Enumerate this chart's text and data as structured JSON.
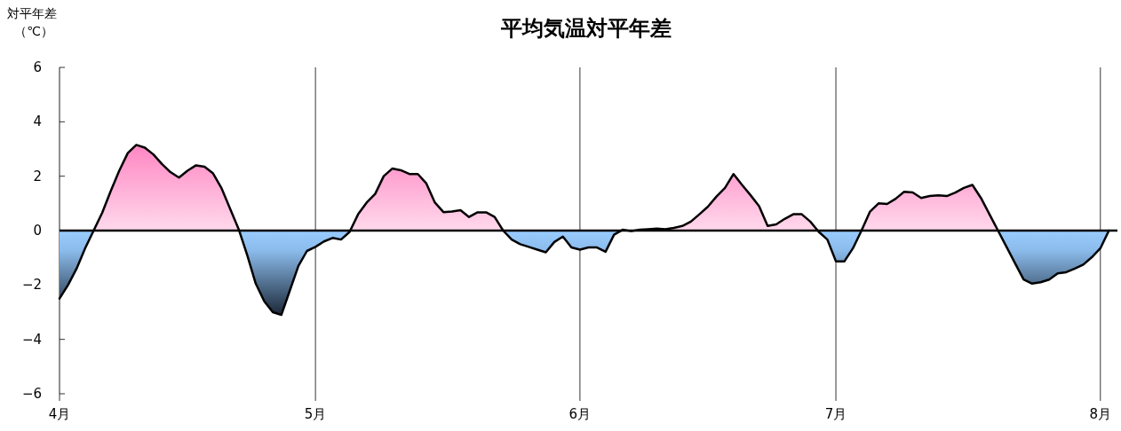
{
  "chart_data": {
    "type": "area",
    "title": "平均気温対平年差",
    "ylabel": "対平年差（℃）",
    "xlim": [
      "--04-01",
      "--08-03"
    ],
    "xticks": [
      {
        "value": "--04-01",
        "label": "4月"
      },
      {
        "value": "--05-01",
        "label": "5月"
      },
      {
        "value": "--06-01",
        "label": "6月"
      },
      {
        "value": "--07-01",
        "label": "7月"
      },
      {
        "value": "--08-01",
        "label": "8月"
      }
    ],
    "ylim": [
      -6,
      6
    ],
    "yticks": [
      -6,
      -4,
      -2,
      0,
      2,
      4,
      6
    ],
    "grid": "x",
    "x": [
      "--04-01",
      "--04-02",
      "--04-03",
      "--04-04",
      "--04-05",
      "--04-06",
      "--04-07",
      "--04-08",
      "--04-09",
      "--04-10",
      "--04-11",
      "--04-12",
      "--04-13",
      "--04-14",
      "--04-15",
      "--04-16",
      "--04-17",
      "--04-18",
      "--04-19",
      "--04-20",
      "--04-21",
      "--04-22",
      "--04-23",
      "--04-24",
      "--04-25",
      "--04-26",
      "--04-27",
      "--04-28",
      "--04-29",
      "--04-30",
      "--05-01",
      "--05-02",
      "--05-03",
      "--05-04",
      "--05-05",
      "--05-06",
      "--05-07",
      "--05-08",
      "--05-09",
      "--05-10",
      "--05-11",
      "--05-12",
      "--05-13",
      "--05-14",
      "--05-15",
      "--05-16",
      "--05-17",
      "--05-18",
      "--05-19",
      "--05-20",
      "--05-21",
      "--05-22",
      "--05-23",
      "--05-24",
      "--05-25",
      "--05-26",
      "--05-27",
      "--05-28",
      "--05-29",
      "--05-30",
      "--05-31",
      "--06-01",
      "--06-02",
      "--06-03",
      "--06-04",
      "--06-05",
      "--06-06",
      "--06-07",
      "--06-08",
      "--06-09",
      "--06-10",
      "--06-11",
      "--06-12",
      "--06-13",
      "--06-14",
      "--06-15",
      "--06-16",
      "--06-17",
      "--06-18",
      "--06-19",
      "--06-20",
      "--06-21",
      "--06-22",
      "--06-23",
      "--06-24",
      "--06-25",
      "--06-26",
      "--06-27",
      "--06-28",
      "--06-29",
      "--06-30",
      "--07-01",
      "--07-02",
      "--07-03",
      "--07-04",
      "--07-05",
      "--07-06",
      "--07-07",
      "--07-08",
      "--07-09",
      "--07-10",
      "--07-11",
      "--07-12",
      "--07-13",
      "--07-14",
      "--07-15",
      "--07-16",
      "--07-17",
      "--07-18",
      "--07-19",
      "--07-20",
      "--07-21",
      "--07-22",
      "--07-23",
      "--07-24",
      "--07-25",
      "--07-26",
      "--07-27",
      "--07-28",
      "--07-29",
      "--07-30",
      "--07-31",
      "--08-01",
      "--08-02"
    ],
    "series": [
      {
        "color": "#000000",
        "values": [
          -2.5,
          -2.0,
          -1.4,
          -0.65,
          0,
          0.65,
          1.45,
          2.2,
          2.85,
          3.15,
          3.05,
          2.8,
          2.45,
          2.15,
          1.95,
          2.2,
          2.4,
          2.35,
          2.1,
          1.55,
          0.8,
          0.05,
          -0.9,
          -1.95,
          -2.6,
          -3.0,
          -3.1,
          -2.2,
          -1.3,
          -0.75,
          -0.6,
          -0.4,
          -0.27,
          -0.33,
          -0.05,
          0.6,
          1.03,
          1.35,
          2.0,
          2.28,
          2.22,
          2.08,
          2.08,
          1.73,
          1.03,
          0.68,
          0.7,
          0.75,
          0.5,
          0.67,
          0.67,
          0.5,
          0,
          -0.33,
          -0.5,
          -0.6,
          -0.7,
          -0.8,
          -0.42,
          -0.22,
          -0.62,
          -0.7,
          -0.62,
          -0.62,
          -0.78,
          -0.15,
          0.03,
          -0.02,
          0.03,
          0.05,
          0.07,
          0.05,
          0.1,
          0.17,
          0.33,
          0.6,
          0.88,
          1.25,
          1.57,
          2.08,
          1.68,
          1.3,
          0.9,
          0.17,
          0.23,
          0.43,
          0.6,
          0.6,
          0.33,
          -0.05,
          -0.33,
          -1.13,
          -1.13,
          -0.65,
          0,
          0.7,
          1.0,
          0.98,
          1.17,
          1.43,
          1.4,
          1.2,
          1.27,
          1.3,
          1.27,
          1.4,
          1.57,
          1.68,
          1.2,
          0.6,
          0,
          -0.6,
          -1.2,
          -1.8,
          -1.95,
          -1.9,
          -1.8,
          -1.57,
          -1.53,
          -1.4,
          -1.25,
          -0.98,
          -0.65,
          0
        ]
      }
    ]
  }
}
